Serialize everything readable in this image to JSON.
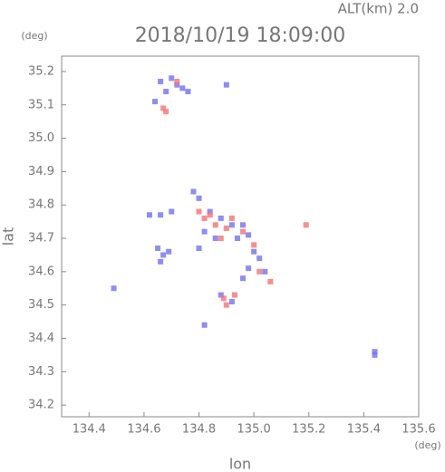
{
  "chart_data": {
    "type": "scatter",
    "title": "2018/10/19 18:09:00",
    "subtitle": "ALT(km) 2.0",
    "x_label": "lon",
    "y_label": "lat",
    "x_unit": "(deg)",
    "y_unit": "(deg)",
    "xlim": [
      134.3,
      135.6
    ],
    "ylim": [
      34.165,
      35.246
    ],
    "xticks": [
      134.4,
      134.6,
      134.8,
      {
        "value": 135,
        "label": "135.0"
      },
      135.2,
      135.4,
      135.6
    ],
    "yticks": [
      34.2,
      34.3,
      34.4,
      34.5,
      34.6,
      34.7,
      34.8,
      34.9,
      {
        "value": 35,
        "label": "35.0"
      },
      35.1,
      35.2
    ],
    "series": [
      {
        "color": "#6f6fff",
        "x": [
          134.66,
          134.7,
          134.72,
          134.74,
          134.68,
          134.64,
          134.76,
          134.9,
          134.62,
          134.66,
          134.7,
          134.78,
          134.8,
          134.84,
          134.88,
          134.92,
          134.96,
          134.98,
          134.94,
          134.86,
          134.82,
          135.0,
          135.02,
          134.98,
          135.04,
          134.96,
          134.65,
          134.67,
          134.69,
          134.66,
          134.49,
          134.88,
          134.92,
          134.82,
          135.44,
          135.44,
          134.8
        ],
        "values": [
          35.17,
          35.18,
          35.16,
          35.15,
          35.14,
          35.11,
          35.14,
          35.16,
          34.77,
          34.77,
          34.78,
          34.84,
          34.82,
          34.78,
          34.76,
          34.74,
          34.74,
          34.71,
          34.7,
          34.7,
          34.72,
          34.66,
          34.64,
          34.61,
          34.6,
          34.58,
          34.67,
          34.65,
          34.66,
          34.63,
          34.55,
          34.53,
          34.51,
          34.44,
          34.35,
          34.36,
          34.67
        ]
      },
      {
        "color": "#ff6f6f",
        "x": [
          134.67,
          134.68,
          134.72,
          134.8,
          134.84,
          134.86,
          134.9,
          134.92,
          134.88,
          134.96,
          135.0,
          135.02,
          135.06,
          134.89,
          134.93,
          134.9,
          135.19,
          134.82
        ],
        "values": [
          35.09,
          35.08,
          35.17,
          34.78,
          34.77,
          34.74,
          34.73,
          34.76,
          34.7,
          34.72,
          34.68,
          34.6,
          34.57,
          34.52,
          34.53,
          34.5,
          34.74,
          34.76
        ]
      }
    ]
  }
}
